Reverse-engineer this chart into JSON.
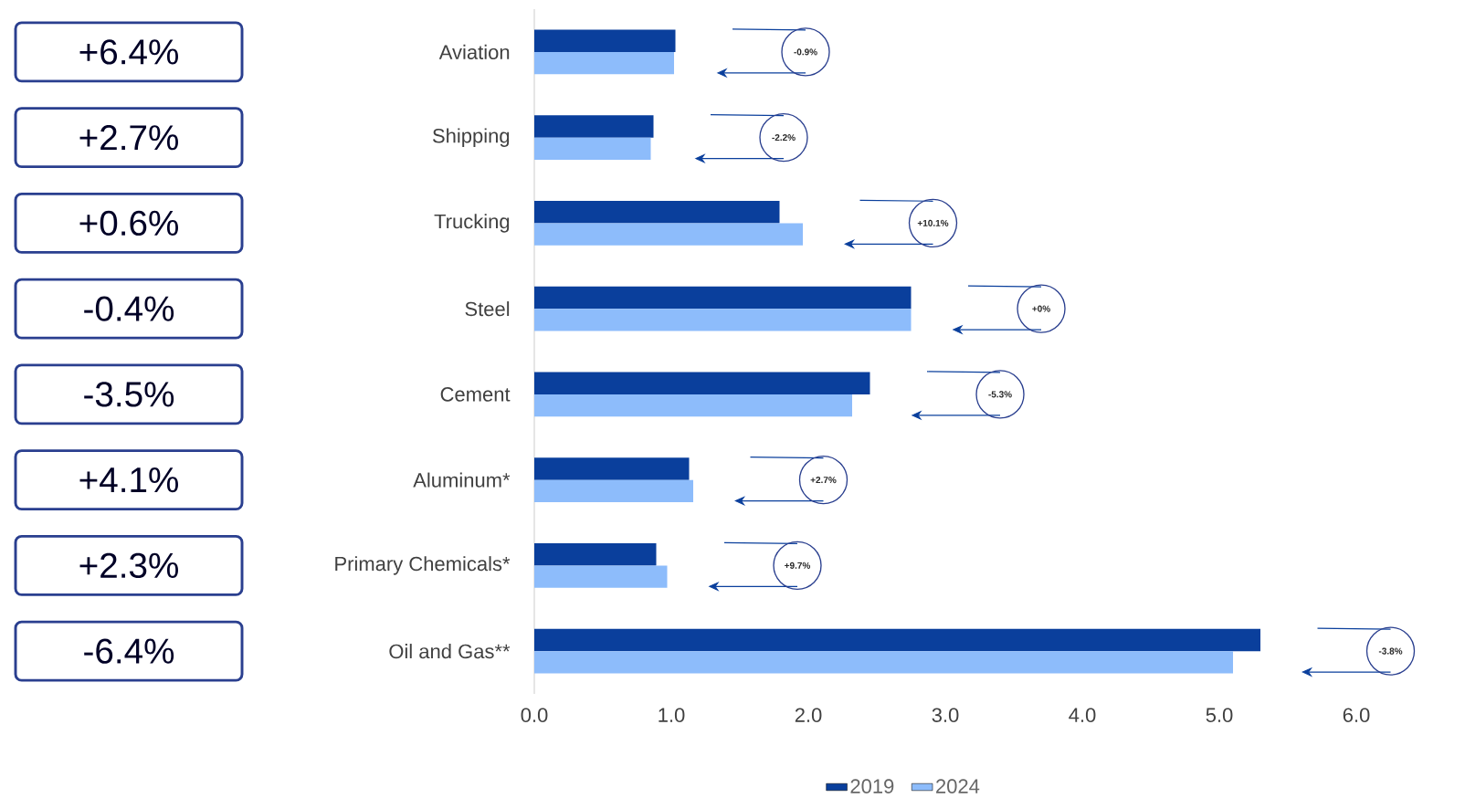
{
  "chart_data": {
    "type": "bar",
    "orientation": "horizontal",
    "categories": [
      "Aviation",
      "Shipping",
      "Trucking",
      "Steel",
      "Cement",
      "Aluminum*",
      "Primary Chemicals*",
      "Oil and Gas**"
    ],
    "series": [
      {
        "name": "2019",
        "color": "#0a3f9c",
        "values": [
          1.03,
          0.87,
          1.79,
          2.75,
          2.45,
          1.13,
          0.89,
          5.3
        ]
      },
      {
        "name": "2024",
        "color": "#8dbcfb",
        "values": [
          1.02,
          0.85,
          1.96,
          2.75,
          2.32,
          1.16,
          0.97,
          5.1
        ]
      }
    ],
    "xlim": [
      0,
      6
    ],
    "xticks": [
      {
        "value": 0,
        "label": "0.0"
      },
      {
        "value": 1,
        "label": "1.0"
      },
      {
        "value": 2,
        "label": "2.0"
      },
      {
        "value": 3,
        "label": "3.0"
      },
      {
        "value": 4,
        "label": "4.0"
      },
      {
        "value": 5,
        "label": "5.0"
      },
      {
        "value": 6,
        "label": "6.0"
      }
    ],
    "legend": "bottom",
    "annotations": [
      "+6.4%",
      "+2.7%",
      "+0.6%",
      "-0.4%",
      "-3.5%",
      "+4.1%",
      "+2.3%",
      "-6.4%",
      "-0.9%",
      "-2.2%",
      "+10.1%",
      "+0%",
      "-5.3%",
      "+2.7%",
      "+9.7%",
      "-3.8%"
    ]
  }
}
